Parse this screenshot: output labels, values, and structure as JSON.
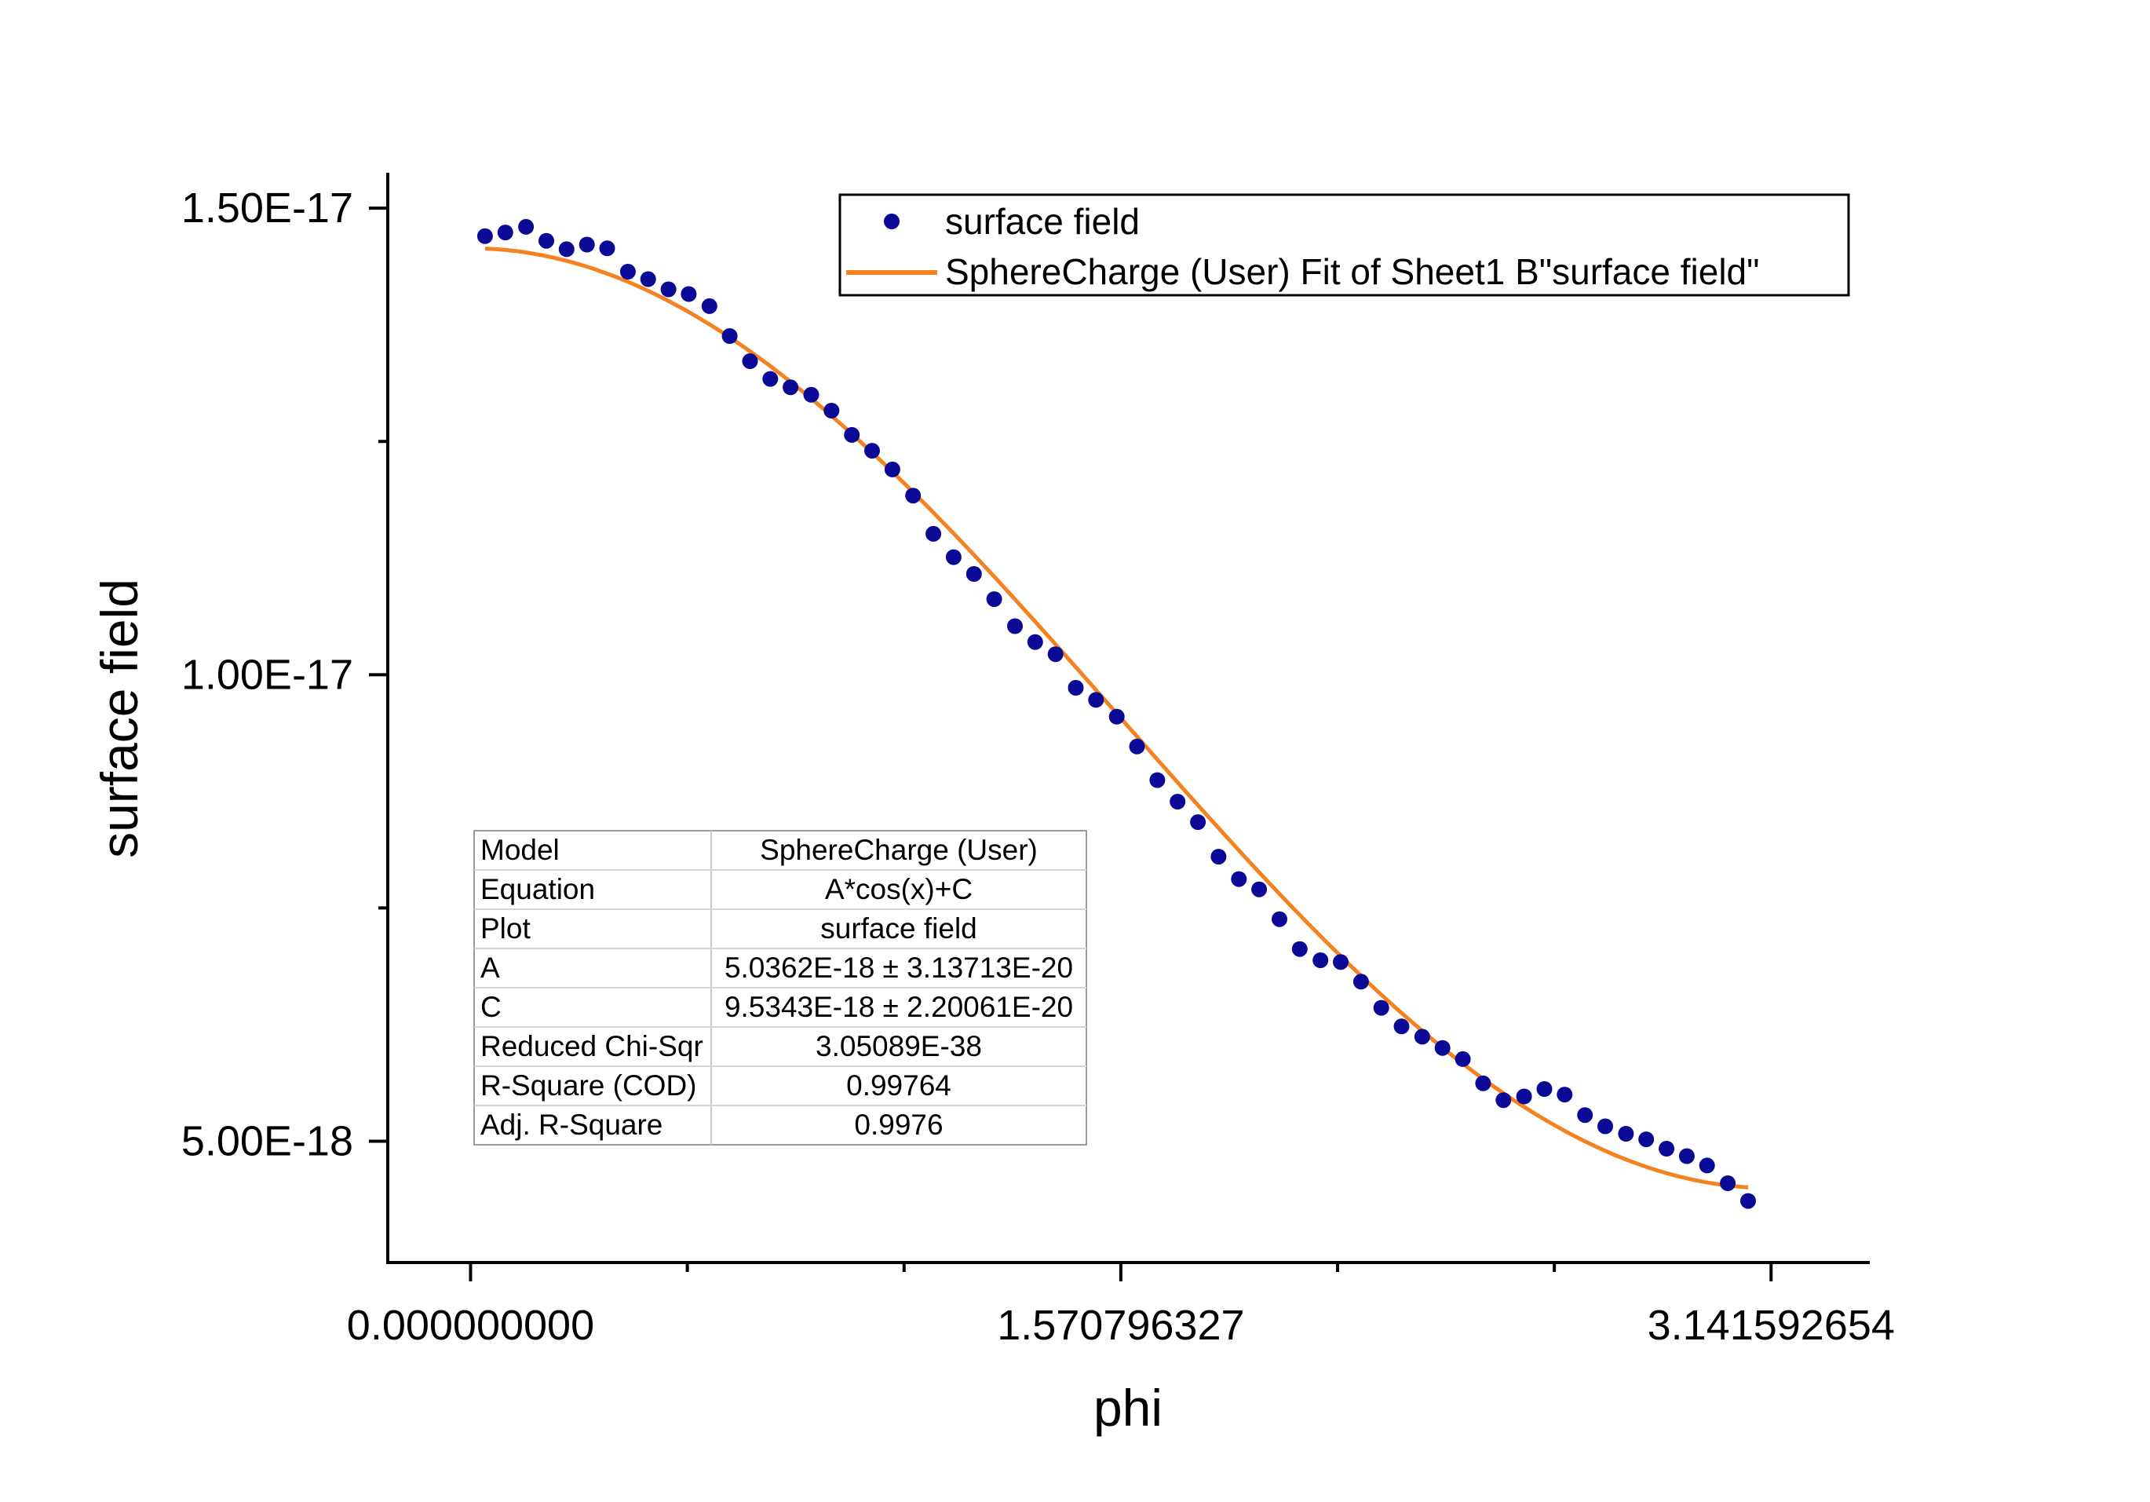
{
  "chart_data": {
    "type": "scatter",
    "title": "",
    "xlabel": "phi",
    "ylabel": "surface field",
    "xlim": [
      -0.2,
      3.38
    ],
    "ylim": [
      3.7e-18,
      1.538e-17
    ],
    "x_ticks": [
      {
        "value": 0,
        "label": "0.000000000"
      },
      {
        "value": 1.570796327,
        "label": "1.570796327"
      },
      {
        "value": 3.141592654,
        "label": "3.141592654"
      }
    ],
    "x_minor_ticks": [
      0.5236,
      1.0472,
      2.0944,
      2.618
    ],
    "y_ticks": [
      {
        "value": 5e-18,
        "label": "5.00E-18"
      },
      {
        "value": 1e-17,
        "label": "1.00E-17"
      },
      {
        "value": 1.5e-17,
        "label": "1.50E-17"
      }
    ],
    "y_minor_ticks": [
      7.5e-18,
      1.25e-17
    ],
    "grid": false,
    "legend_position": "top-right",
    "series": [
      {
        "name": "surface field",
        "kind": "scatter",
        "color": "#0a0a96",
        "x": [
          0.035,
          0.084,
          0.134,
          0.183,
          0.232,
          0.281,
          0.33,
          0.38,
          0.429,
          0.478,
          0.527,
          0.577,
          0.626,
          0.675,
          0.724,
          0.773,
          0.823,
          0.872,
          0.921,
          0.97,
          1.019,
          1.069,
          1.118,
          1.167,
          1.216,
          1.265,
          1.315,
          1.364,
          1.413,
          1.462,
          1.511,
          1.561,
          1.61,
          1.659,
          1.708,
          1.757,
          1.807,
          1.856,
          1.905,
          1.954,
          2.003,
          2.053,
          2.102,
          2.151,
          2.2,
          2.249,
          2.299,
          2.348,
          2.397,
          2.446,
          2.495,
          2.545,
          2.594,
          2.643,
          2.692,
          2.741,
          2.791,
          2.84,
          2.889,
          2.938,
          2.987,
          3.037,
          3.086
        ],
        "y": [
          1.47e-17,
          1.474e-17,
          1.48e-17,
          1.465e-17,
          1.456e-17,
          1.461e-17,
          1.457e-17,
          1.432e-17,
          1.424e-17,
          1.413e-17,
          1.408e-17,
          1.395e-17,
          1.363e-17,
          1.336e-17,
          1.317e-17,
          1.308e-17,
          1.3e-17,
          1.283e-17,
          1.257e-17,
          1.24e-17,
          1.22e-17,
          1.192e-17,
          1.151e-17,
          1.126e-17,
          1.108e-17,
          1.081e-17,
          1.052e-17,
          1.035e-17,
          1.022e-17,
          9.86e-18,
          9.73e-18,
          9.55e-18,
          9.23e-18,
          8.87e-18,
          8.64e-18,
          8.42e-18,
          8.05e-18,
          7.81e-18,
          7.7e-18,
          7.38e-18,
          7.06e-18,
          6.94e-18,
          6.92e-18,
          6.71e-18,
          6.43e-18,
          6.23e-18,
          6.12e-18,
          6e-18,
          5.88e-18,
          5.62e-18,
          5.44e-18,
          5.48e-18,
          5.56e-18,
          5.5e-18,
          5.28e-18,
          5.16e-18,
          5.08e-18,
          5.02e-18,
          4.92e-18,
          4.84e-18,
          4.74e-18,
          4.55e-18,
          4.36e-18
        ]
      },
      {
        "name": "SphereCharge (User) Fit of Sheet1 B\"surface field\"",
        "kind": "line",
        "color": "#f58220",
        "x_range": [
          0.035,
          3.086
        ],
        "equation": "A*cos(x)+C",
        "A": 5.0362e-18,
        "C": 9.5343e-18
      }
    ],
    "fit_table": {
      "rows": [
        {
          "label": "Model",
          "value": "SphereCharge (User)"
        },
        {
          "label": "Equation",
          "value": "A*cos(x)+C"
        },
        {
          "label": "Plot",
          "value": "surface field"
        },
        {
          "label": "A",
          "value": "5.0362E-18 ± 3.13713E-20"
        },
        {
          "label": "C",
          "value": "9.5343E-18 ± 2.20061E-20"
        },
        {
          "label": "Reduced Chi-Sqr",
          "value": "3.05089E-38"
        },
        {
          "label": "R-Square (COD)",
          "value": "0.99764"
        },
        {
          "label": "Adj. R-Square",
          "value": "0.9976"
        }
      ]
    }
  }
}
